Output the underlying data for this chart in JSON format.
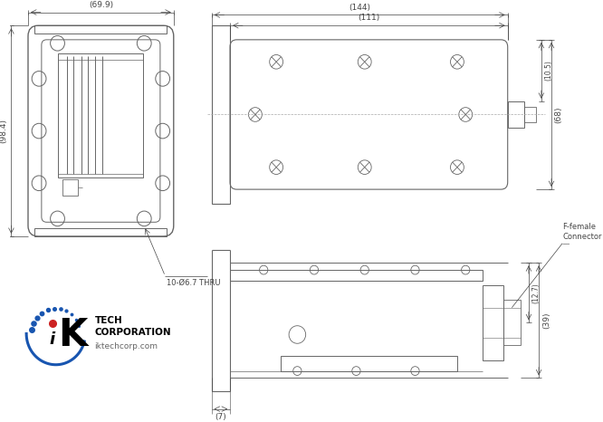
{
  "bg_color": "#ffffff",
  "line_color": "#666666",
  "dim_color": "#444444",
  "dim_fontsize": 6.5,
  "front_view": {
    "dim_width_label": "(69.9)",
    "dim_height_label": "(98.4)",
    "hole_note": "10-Ø6.7 THRU"
  },
  "side_view": {
    "dim_total_label": "(144)",
    "dim_body_label": "(111)",
    "dim_height_label": "(68)",
    "dim_connector_label": "(10.5)"
  },
  "bottom_view": {
    "dim_flange_label": "(7)",
    "dim_height_label": "(39)",
    "dim_connector_label": "(12.7)",
    "connector_label": "F-female\nConnector"
  }
}
